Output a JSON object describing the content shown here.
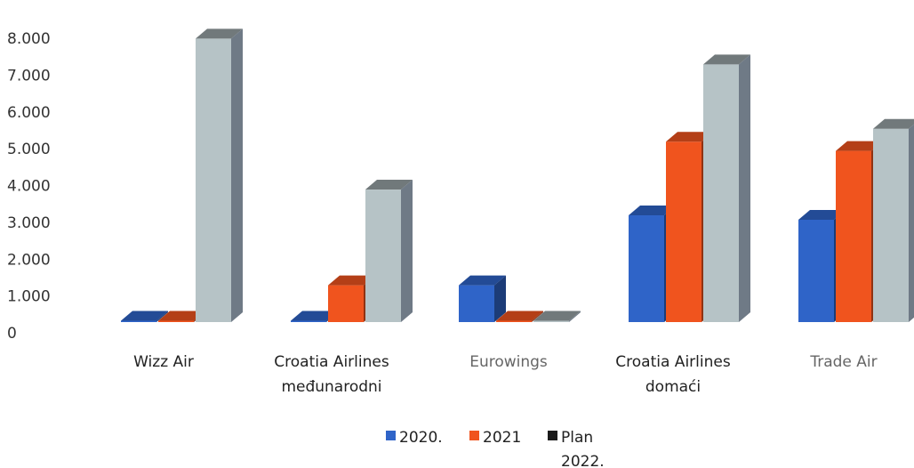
{
  "chart_data": {
    "type": "bar",
    "categories": [
      [
        "Wizz Air"
      ],
      [
        "Croatia Airlines",
        "međunarodni"
      ],
      [
        "Eurowings"
      ],
      [
        "Croatia Airlines",
        "domaći"
      ],
      [
        "Trade Air"
      ]
    ],
    "series": [
      {
        "name": "2020.",
        "values": [
          0,
          0,
          1000,
          2900,
          2780
        ],
        "color": "#2f64c8"
      },
      {
        "name": "2021",
        "values": [
          0,
          1000,
          0,
          4900,
          4650
        ],
        "color": "#f0541e"
      },
      {
        "name": "Plan 2022.",
        "values": [
          7700,
          3600,
          0,
          7000,
          5250
        ],
        "color": "#b6c3c6"
      }
    ],
    "y_ticks": [
      "0",
      "1.000",
      "2.000",
      "3.000",
      "4.000",
      "5.000",
      "6.000",
      "7.000",
      "8.000"
    ],
    "ylim": [
      0,
      8000
    ],
    "legend_labels": [
      "2020.",
      "2021",
      "Plan",
      "2022."
    ],
    "legend_position": "bottom",
    "grid": false,
    "style": "3d-column"
  }
}
